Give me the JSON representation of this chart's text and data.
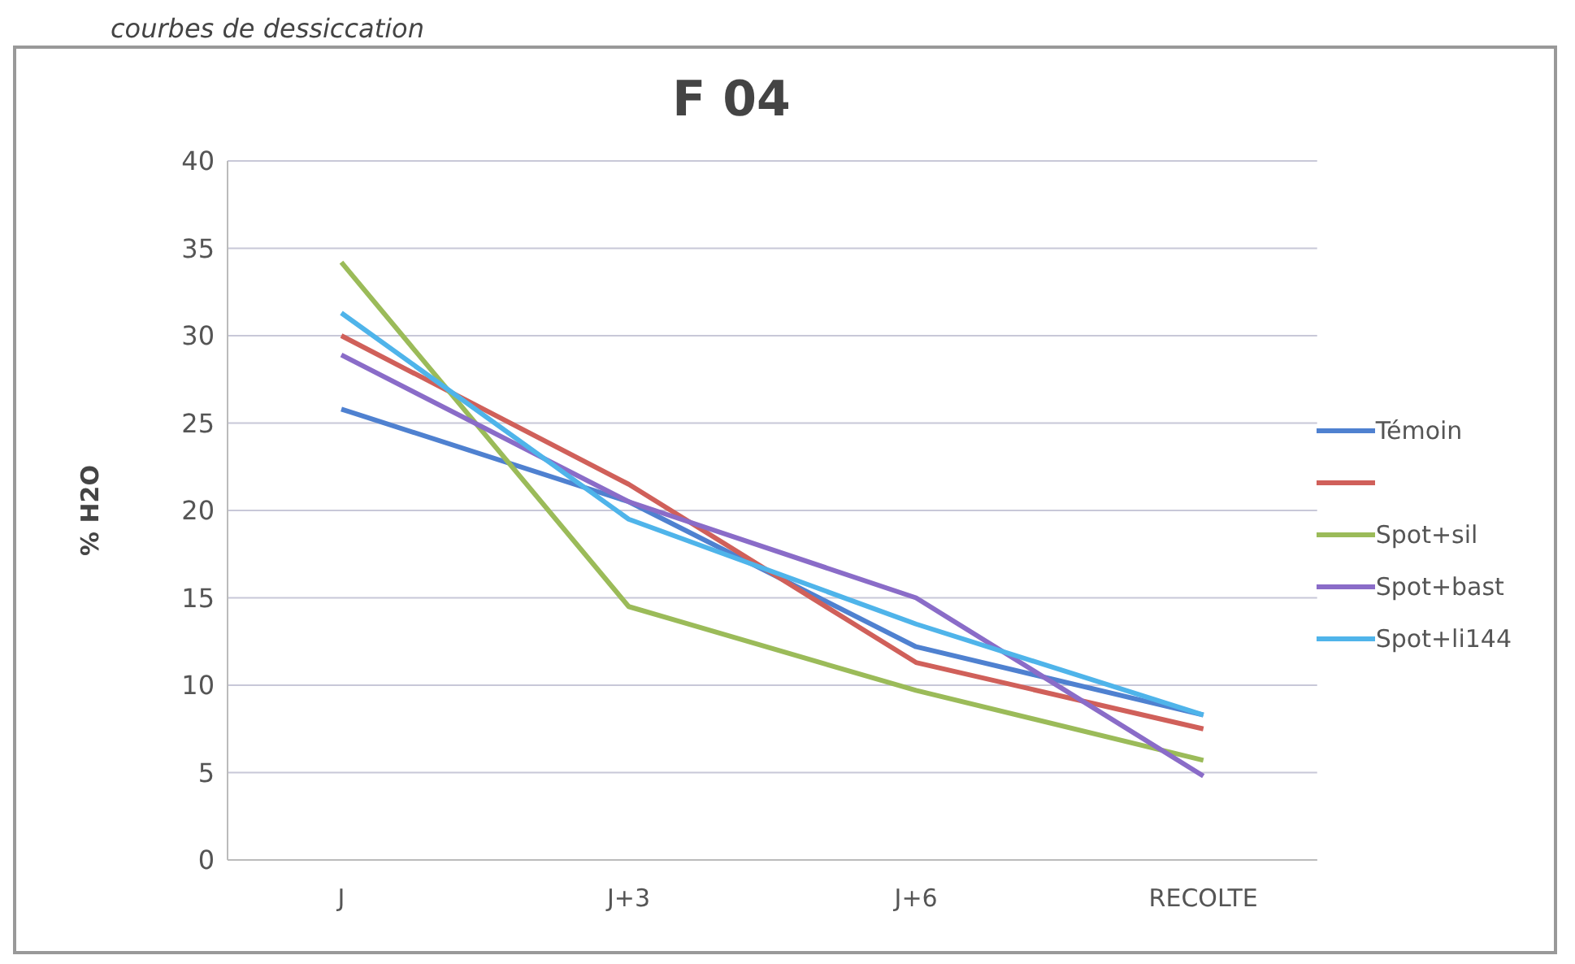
{
  "chart_data": {
    "type": "line",
    "title": "F 04",
    "ylabel": "% H2O",
    "annotations": [
      "courbes de dessiccation"
    ],
    "categories": [
      "J",
      "J+3",
      "J+6",
      "RECOLTE"
    ],
    "series": [
      {
        "name": "Témoin",
        "color": "#4f81d0",
        "values": [
          25.8,
          20.5,
          12.2,
          8.3
        ]
      },
      {
        "color": "#d0605a",
        "values": [
          30,
          21.5,
          11.3,
          7.5
        ]
      },
      {
        "name": "Spot+sil",
        "color": "#9bbb59",
        "values": [
          34.2,
          14.5,
          9.7,
          5.7
        ]
      },
      {
        "name": "Spot+bast",
        "color": "#8a6cc8",
        "values": [
          28.9,
          20.5,
          15,
          4.8
        ]
      },
      {
        "name": "Spot+li144",
        "color": "#4fb4ea",
        "values": [
          31.3,
          19.5,
          13.5,
          8.3
        ]
      }
    ],
    "ylim": [
      0,
      40
    ],
    "yticks": [
      0,
      5,
      10,
      15,
      20,
      25,
      30,
      35,
      40
    ],
    "grid": "y",
    "legend": "right",
    "marker": "none",
    "line_style": "solid"
  }
}
